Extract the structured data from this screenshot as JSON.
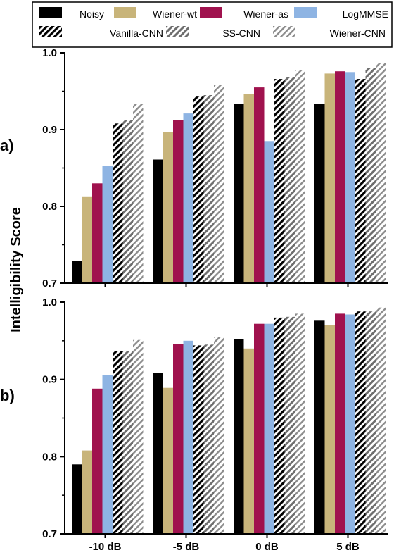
{
  "figure": {
    "ylabel": "Intelligibility Score",
    "categories": [
      "-10 dB",
      "-5 dB",
      "0 dB",
      "5 dB"
    ],
    "legend": [
      {
        "name": "Noisy",
        "color": "#000000",
        "pattern": "solid"
      },
      {
        "name": "Wiener-wt",
        "color": "#c8b47a",
        "pattern": "solid"
      },
      {
        "name": "Wiener-as",
        "color": "#a0124e",
        "pattern": "solid"
      },
      {
        "name": "LogMMSE",
        "color": "#8eb4e3",
        "pattern": "solid"
      },
      {
        "name": "Vanilla-CNN",
        "color": "#000000",
        "pattern": "hatch-dense"
      },
      {
        "name": "SS-CNN",
        "color": "#777777",
        "pattern": "hatch-grey"
      },
      {
        "name": "Wiener-CNN",
        "color": "#999999",
        "pattern": "hatch-light"
      }
    ]
  },
  "chart_data": [
    {
      "type": "bar",
      "panel_label": "a)",
      "categories": [
        "-10 dB",
        "-5 dB",
        "0 dB",
        "5 dB"
      ],
      "ylim": [
        0.7,
        1.0
      ],
      "yticks": [
        "0.7",
        "0.8",
        "0.9",
        "1.0"
      ],
      "series": [
        {
          "name": "Noisy",
          "values": [
            0.729,
            0.861,
            0.933,
            0.933
          ]
        },
        {
          "name": "Wiener-wt",
          "values": [
            0.813,
            0.897,
            0.946,
            0.973
          ]
        },
        {
          "name": "Wiener-as",
          "values": [
            0.83,
            0.912,
            0.955,
            0.976
          ]
        },
        {
          "name": "LogMMSE",
          "values": [
            0.853,
            0.921,
            0.885,
            0.975
          ]
        },
        {
          "name": "Vanilla-CNN",
          "values": [
            0.908,
            0.943,
            0.966,
            0.966
          ]
        },
        {
          "name": "SS-CNN",
          "values": [
            0.912,
            0.945,
            0.968,
            0.98
          ]
        },
        {
          "name": "Wiener-CNN",
          "values": [
            0.933,
            0.958,
            0.978,
            0.987
          ]
        }
      ]
    },
    {
      "type": "bar",
      "panel_label": "b)",
      "categories": [
        "-10 dB",
        "-5 dB",
        "0 dB",
        "5 dB"
      ],
      "ylim": [
        0.7,
        1.0
      ],
      "yticks": [
        "0.7",
        "0.8",
        "0.9",
        "1.0"
      ],
      "series": [
        {
          "name": "Noisy",
          "values": [
            0.79,
            0.908,
            0.952,
            0.976
          ]
        },
        {
          "name": "Wiener-wt",
          "values": [
            0.808,
            0.889,
            0.94,
            0.97
          ]
        },
        {
          "name": "Wiener-as",
          "values": [
            0.888,
            0.946,
            0.972,
            0.985
          ]
        },
        {
          "name": "LogMMSE",
          "values": [
            0.906,
            0.95,
            0.972,
            0.984
          ]
        },
        {
          "name": "Vanilla-CNN",
          "values": [
            0.937,
            0.944,
            0.98,
            0.988
          ]
        },
        {
          "name": "SS-CNN",
          "values": [
            0.937,
            0.945,
            0.981,
            0.988
          ]
        },
        {
          "name": "Wiener-CNN",
          "values": [
            0.951,
            0.955,
            0.985,
            0.993
          ]
        }
      ]
    }
  ]
}
